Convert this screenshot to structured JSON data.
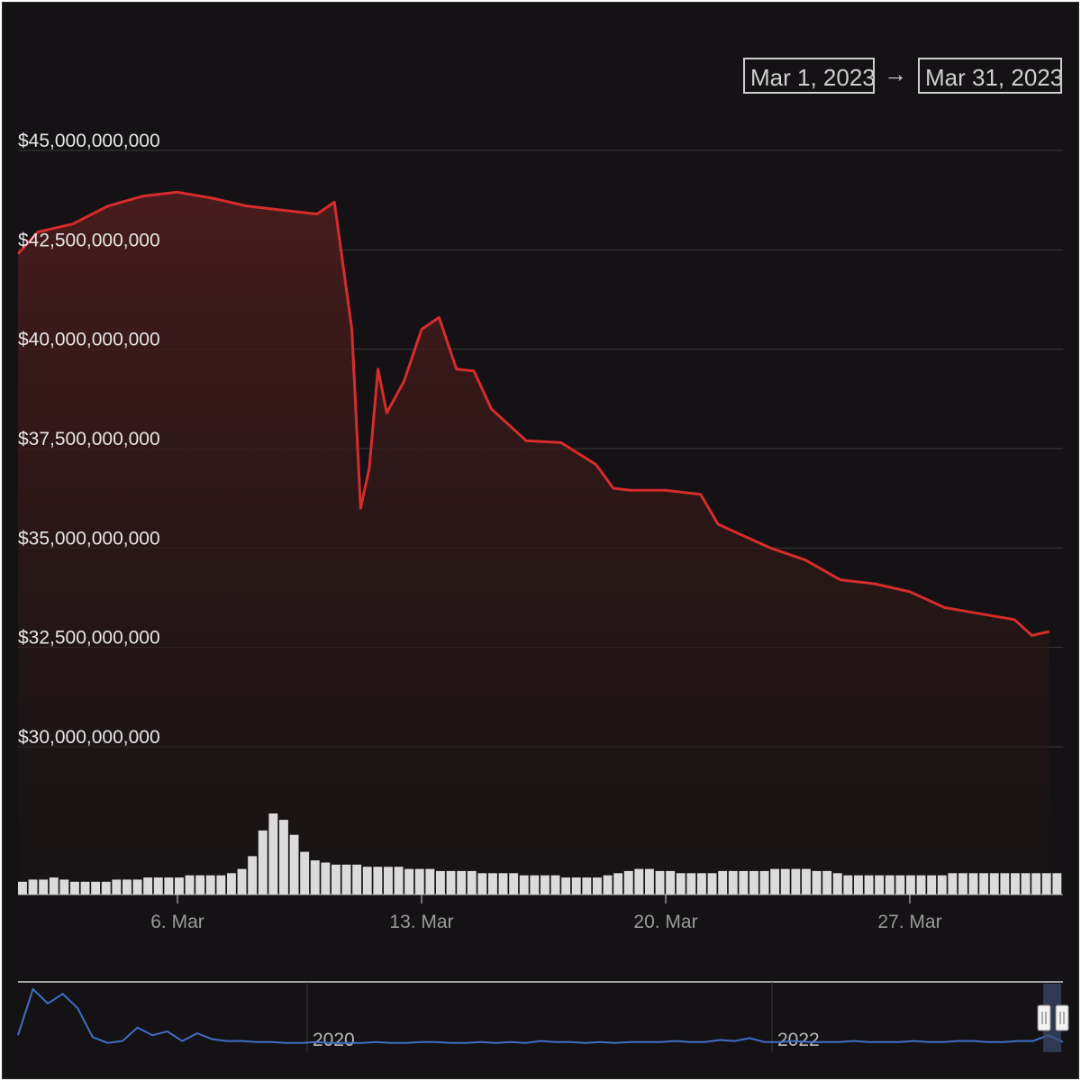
{
  "range_selector": {
    "from": "Mar 1, 2023",
    "arrow": "→",
    "to": "Mar 31, 2023"
  },
  "colors": {
    "background": "#141214",
    "price_line": "#d62c2c",
    "gridline": "#3a3a3a",
    "volume": "#ffffff",
    "navigator_line": "#3f6fc4"
  },
  "chart_data": {
    "type": "line",
    "title": "",
    "xlabel": "",
    "ylabel": "",
    "y_ticks": [
      "$45,000,000,000",
      "$42,500,000,000",
      "$40,000,000,000",
      "$37,500,000,000",
      "$35,000,000,000",
      "$32,500,000,000",
      "$30,000,000,000"
    ],
    "x_ticks": [
      "6. Mar",
      "13. Mar",
      "20. Mar",
      "27. Mar"
    ],
    "ylim": [
      30000000000,
      45000000000
    ],
    "xlim": [
      "2023-03-01",
      "2023-03-31"
    ],
    "grid": true,
    "series": [
      {
        "points": [
          [
            "2023-03-01",
            42400000000
          ],
          [
            "2023-03-02",
            42950000000
          ],
          [
            "2023-03-03",
            43150000000
          ],
          [
            "2023-03-04",
            43600000000
          ],
          [
            "2023-03-05",
            43850000000
          ],
          [
            "2023-03-06",
            43950000000
          ],
          [
            "2023-03-07",
            43800000000
          ],
          [
            "2023-03-08",
            43600000000
          ],
          [
            "2023-03-09",
            43500000000
          ],
          [
            "2023-03-10",
            43400000000
          ],
          [
            "2023-03-10T12:00",
            43700000000
          ],
          [
            "2023-03-11",
            40500000000
          ],
          [
            "2023-03-11T06:00",
            36000000000
          ],
          [
            "2023-03-11T12:00",
            37000000000
          ],
          [
            "2023-03-11T18:00",
            39500000000
          ],
          [
            "2023-03-12",
            38400000000
          ],
          [
            "2023-03-12T12:00",
            39200000000
          ],
          [
            "2023-03-13",
            40500000000
          ],
          [
            "2023-03-13T12:00",
            40800000000
          ],
          [
            "2023-03-14",
            39500000000
          ],
          [
            "2023-03-14T12:00",
            39450000000
          ],
          [
            "2023-03-15",
            38500000000
          ],
          [
            "2023-03-16",
            37700000000
          ],
          [
            "2023-03-17",
            37650000000
          ],
          [
            "2023-03-18",
            37100000000
          ],
          [
            "2023-03-18T12:00",
            36500000000
          ],
          [
            "2023-03-19",
            36450000000
          ],
          [
            "2023-03-20",
            36450000000
          ],
          [
            "2023-03-21",
            36350000000
          ],
          [
            "2023-03-21T12:00",
            35600000000
          ],
          [
            "2023-03-22",
            35400000000
          ],
          [
            "2023-03-23",
            35000000000
          ],
          [
            "2023-03-24",
            34700000000
          ],
          [
            "2023-03-25",
            34200000000
          ],
          [
            "2023-03-26",
            34100000000
          ],
          [
            "2023-03-27",
            33900000000
          ],
          [
            "2023-03-28",
            33500000000
          ],
          [
            "2023-03-29",
            33350000000
          ],
          [
            "2023-03-30",
            33200000000
          ],
          [
            "2023-03-30T12:00",
            32800000000
          ],
          [
            "2023-03-31",
            32900000000
          ]
        ]
      }
    ],
    "volume_series": {
      "values": [
        6,
        7,
        7,
        8,
        7,
        6,
        6,
        6,
        6,
        7,
        7,
        7,
        8,
        8,
        8,
        8,
        9,
        9,
        9,
        9,
        10,
        12,
        18,
        30,
        38,
        35,
        28,
        20,
        16,
        15,
        14,
        14,
        14,
        13,
        13,
        13,
        13,
        12,
        12,
        12,
        11,
        11,
        11,
        11,
        10,
        10,
        10,
        10,
        9,
        9,
        9,
        9,
        8,
        8,
        8,
        8,
        9,
        10,
        11,
        12,
        12,
        11,
        11,
        10,
        10,
        10,
        10,
        11,
        11,
        11,
        11,
        11,
        12,
        12,
        12,
        12,
        11,
        11,
        10,
        9,
        9,
        9,
        9,
        9,
        9,
        9,
        9,
        9,
        9,
        10,
        10,
        10,
        10,
        10,
        10,
        10,
        10,
        10,
        10,
        10
      ]
    },
    "navigator": {
      "x_ticks": [
        "2020",
        "2022"
      ],
      "values": [
        12,
        60,
        45,
        55,
        40,
        10,
        4,
        6,
        20,
        12,
        16,
        6,
        14,
        8,
        6,
        6,
        5,
        5,
        4,
        4,
        5,
        4,
        4,
        4,
        5,
        4,
        4,
        5,
        5,
        4,
        4,
        5,
        4,
        5,
        4,
        6,
        5,
        5,
        4,
        5,
        4,
        5,
        5,
        5,
        6,
        5,
        5,
        7,
        6,
        9,
        5,
        5,
        6,
        5,
        5,
        5,
        6,
        5,
        5,
        5,
        6,
        5,
        5,
        6,
        6,
        5,
        5,
        6,
        6,
        12,
        5
      ]
    }
  }
}
